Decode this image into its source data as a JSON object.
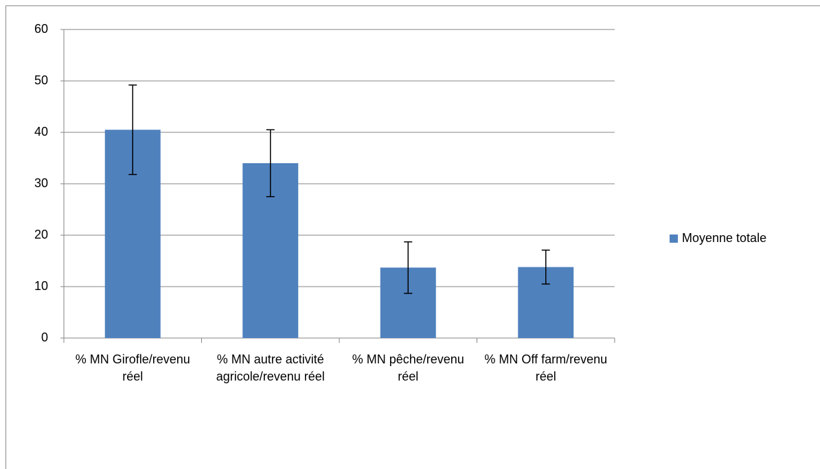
{
  "chart_data": {
    "type": "bar",
    "categories": [
      "% MN Girofle/revenu réel",
      "% MN autre activité agricole/revenu réel",
      "% MN pêche/revenu réel",
      "% MN Off farm/revenu réel"
    ],
    "series": [
      {
        "name": "Moyenne totale",
        "color": "#4f81bd",
        "values": [
          40.5,
          34,
          13.7,
          13.8
        ],
        "errors": [
          8.7,
          6.5,
          5,
          3.3
        ]
      }
    ],
    "ylim": [
      0,
      60
    ],
    "yticks": [
      0,
      10,
      20,
      30,
      40,
      50,
      60
    ],
    "grid": true,
    "legend": "right"
  }
}
